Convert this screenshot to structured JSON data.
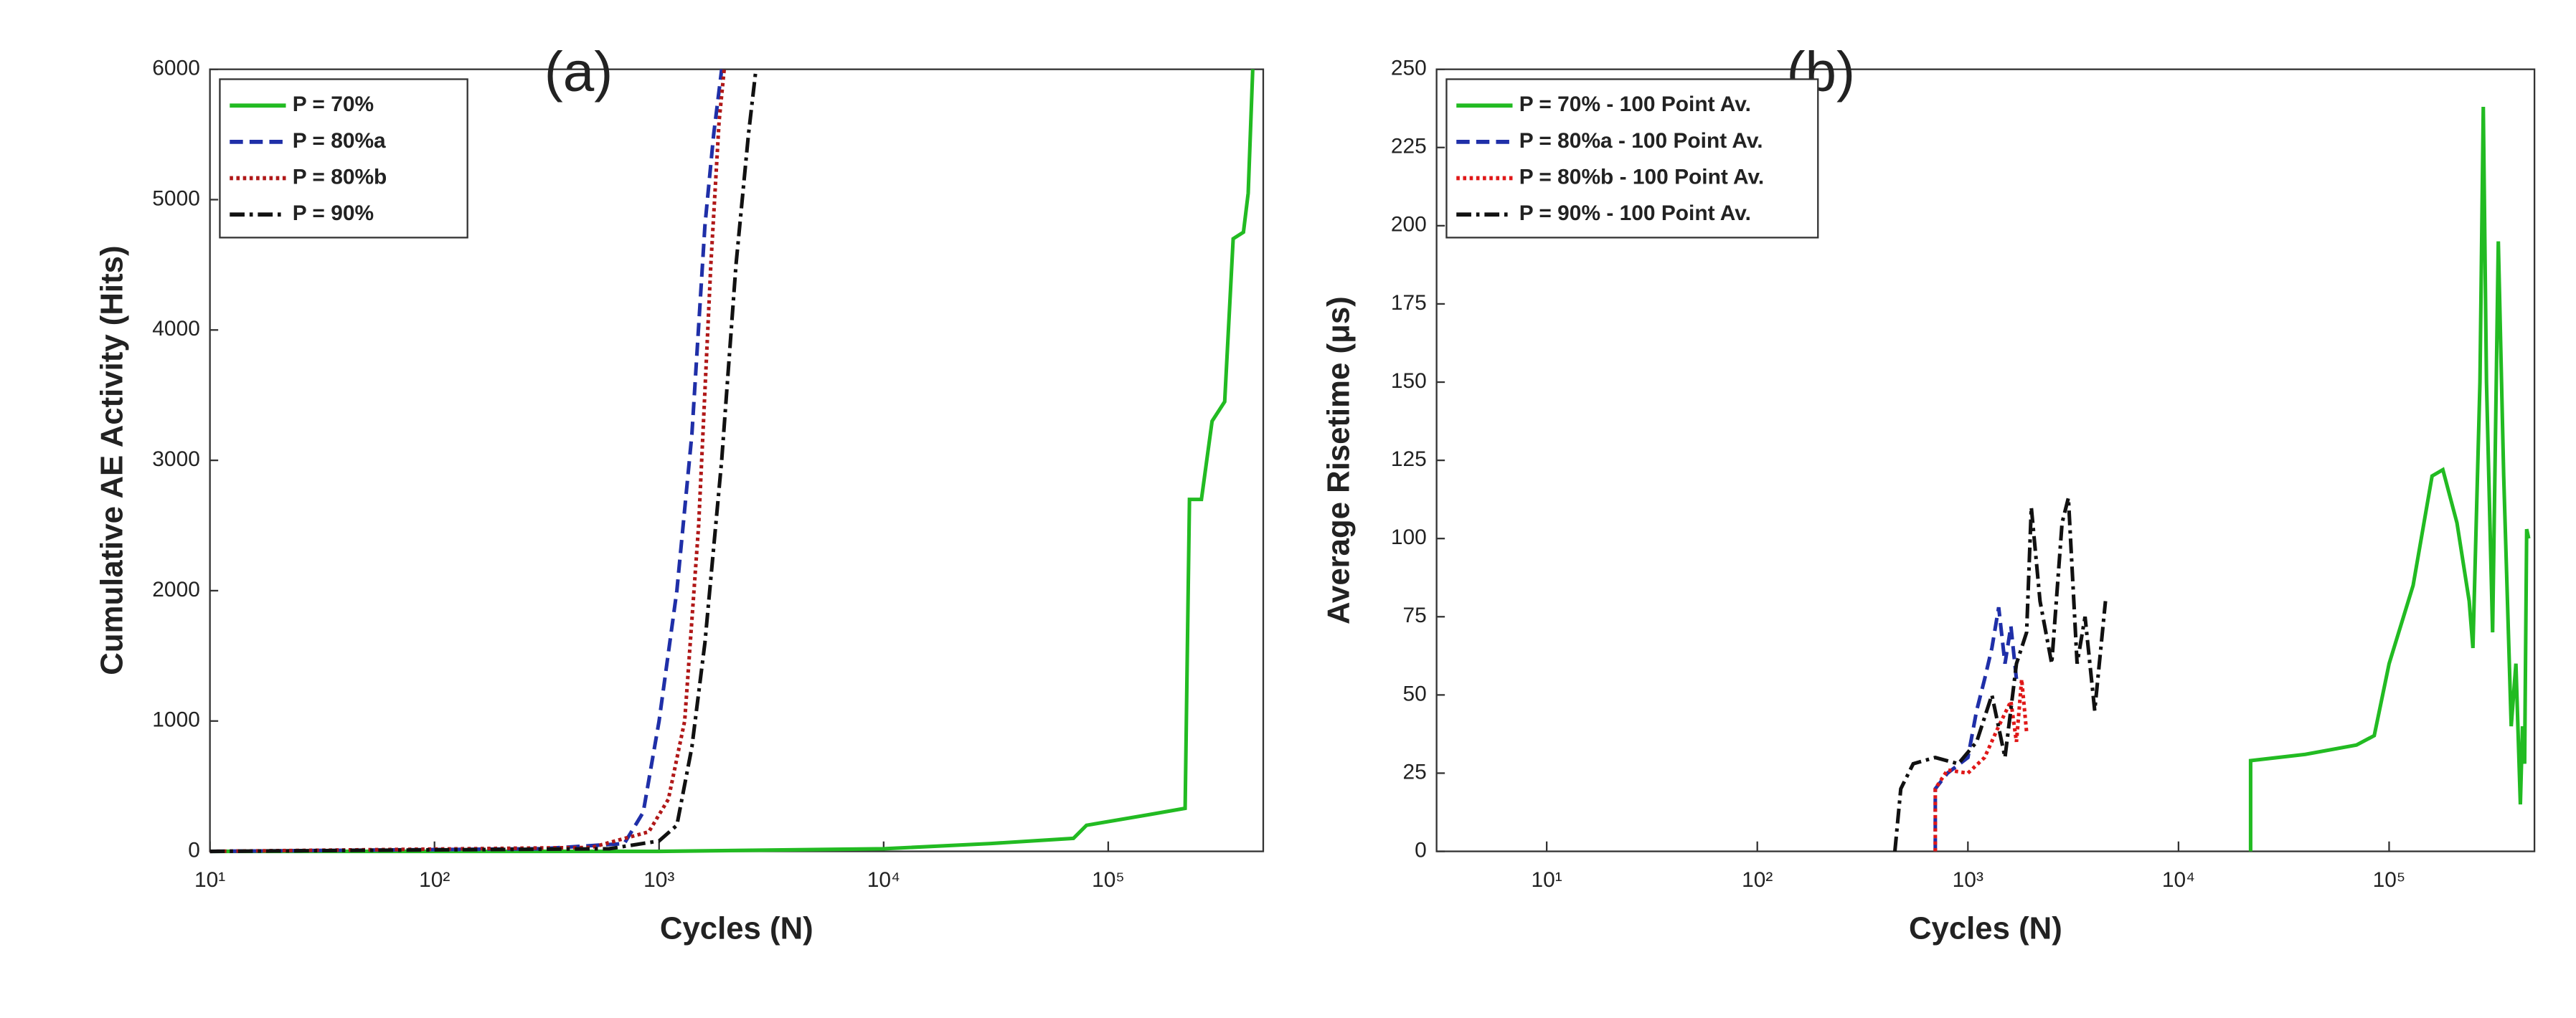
{
  "chart_data": [
    {
      "type": "line",
      "panel_label": "(a)",
      "xlabel": "Cycles (N)",
      "ylabel": "Cumulative AE Activity (Hits)",
      "xscale": "log",
      "xlim": [
        10,
        490000
      ],
      "ylim": [
        0,
        6000
      ],
      "xticks": [
        {
          "value": 10,
          "label": "10¹"
        },
        {
          "value": 100,
          "label": "10²"
        },
        {
          "value": 1000,
          "label": "10³"
        },
        {
          "value": 10000,
          "label": "10⁴"
        },
        {
          "value": 100000,
          "label": "10⁵"
        }
      ],
      "yticks": [
        0,
        1000,
        2000,
        3000,
        4000,
        5000,
        6000
      ],
      "legend": "upper left",
      "series": [
        {
          "name": "P = 70%",
          "color": "#22bb22",
          "dash": "solid",
          "x": [
            10,
            1000,
            10000,
            30000,
            70000,
            80000,
            150000,
            220000,
            230000,
            260000,
            290000,
            330000,
            360000,
            400000,
            420000,
            440000
          ],
          "values": [
            0,
            0,
            20,
            60,
            100,
            200,
            280,
            330,
            2700,
            2700,
            3300,
            3450,
            4700,
            4750,
            5050,
            6000
          ]
        },
        {
          "name": "P = 80%a",
          "color": "#1f2fa8",
          "dash": "dashed",
          "x": [
            10,
            300,
            700,
            850,
            1000,
            1200,
            1400,
            1600,
            1750,
            1900
          ],
          "values": [
            0,
            20,
            60,
            300,
            1000,
            2000,
            3200,
            4800,
            5500,
            6000
          ]
        },
        {
          "name": "P = 80%b",
          "color": "#b01818",
          "dash": "dotted",
          "x": [
            10,
            500,
            900,
            1100,
            1300,
            1500,
            1700,
            1850,
            1950
          ],
          "values": [
            0,
            30,
            150,
            400,
            1000,
            2500,
            4500,
            5600,
            6000
          ]
        },
        {
          "name": "P = 90%",
          "color": "#111111",
          "dash": "dashdot",
          "x": [
            10,
            600,
            1000,
            1200,
            1400,
            1600,
            1900,
            2200,
            2500,
            2700
          ],
          "values": [
            0,
            20,
            80,
            200,
            800,
            1600,
            3000,
            4500,
            5500,
            6000
          ]
        }
      ]
    },
    {
      "type": "line",
      "panel_label": "(b)",
      "xlabel": "Cycles (N)",
      "ylabel": "Average Risetime (μs)",
      "xscale": "log",
      "xlim": [
        3,
        490000
      ],
      "ylim": [
        0,
        250
      ],
      "xticks": [
        {
          "value": 10,
          "label": "10¹"
        },
        {
          "value": 100,
          "label": "10²"
        },
        {
          "value": 1000,
          "label": "10³"
        },
        {
          "value": 10000,
          "label": "10⁴"
        },
        {
          "value": 100000,
          "label": "10⁵"
        }
      ],
      "yticks": [
        0,
        25,
        50,
        75,
        100,
        125,
        150,
        175,
        200,
        225,
        250
      ],
      "legend": "upper left",
      "series": [
        {
          "name": "P = 70% - 100 Point Av.",
          "color": "#22bb22",
          "dash": "solid",
          "x": [
            22000,
            22000,
            40000,
            70000,
            85000,
            100000,
            130000,
            160000,
            180000,
            210000,
            240000,
            250000,
            270000,
            280000,
            290000,
            310000,
            330000,
            350000,
            380000,
            400000,
            420000,
            430000,
            440000,
            450000,
            460000
          ],
          "values": [
            0,
            29,
            31,
            34,
            37,
            60,
            85,
            120,
            122,
            105,
            80,
            65,
            150,
            238,
            150,
            70,
            195,
            120,
            40,
            60,
            15,
            40,
            28,
            103,
            100
          ]
        },
        {
          "name": "P = 80%a - 100 Point Av.",
          "color": "#1f2fa8",
          "dash": "dashed",
          "x": [
            700,
            700,
            800,
            1000,
            1100,
            1200,
            1300,
            1400,
            1500,
            1600,
            1700
          ],
          "values": [
            0,
            20,
            25,
            30,
            45,
            55,
            65,
            78,
            60,
            72,
            55
          ]
        },
        {
          "name": "P = 80%b - 100 Point Av.",
          "color": "#e01818",
          "dash": "dotted",
          "x": [
            700,
            700,
            800,
            1000,
            1200,
            1400,
            1600,
            1700,
            1800,
            1900
          ],
          "values": [
            0,
            20,
            26,
            25,
            30,
            40,
            48,
            35,
            55,
            38
          ]
        },
        {
          "name": "P = 90% - 100 Point Av.",
          "color": "#111111",
          "dash": "dashdot",
          "x": [
            450,
            480,
            550,
            700,
            900,
            1100,
            1300,
            1500,
            1700,
            1900,
            2000,
            2200,
            2500,
            2800,
            3000,
            3300,
            3600,
            4000,
            4500
          ],
          "values": [
            0,
            20,
            28,
            30,
            28,
            35,
            50,
            30,
            60,
            70,
            110,
            80,
            60,
            105,
            113,
            60,
            75,
            45,
            80
          ]
        }
      ]
    }
  ]
}
